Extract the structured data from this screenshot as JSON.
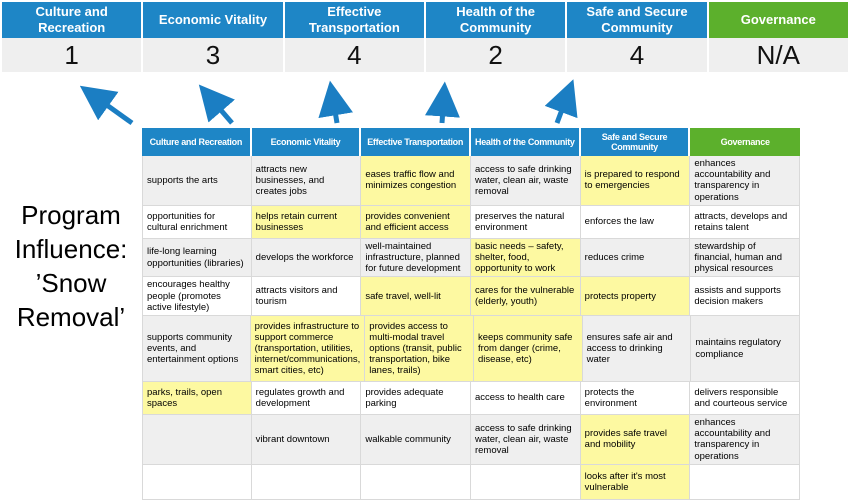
{
  "top_band": {
    "columns": [
      {
        "label": "Culture and Recreation",
        "score": "1",
        "color": "blue"
      },
      {
        "label": "Economic Vitality",
        "score": "3",
        "color": "blue"
      },
      {
        "label": "Effective Transportation",
        "score": "4",
        "color": "blue"
      },
      {
        "label": "Health of the Community",
        "score": "2",
        "color": "blue"
      },
      {
        "label": "Safe and Secure Community",
        "score": "4",
        "color": "blue"
      },
      {
        "label": "Governance",
        "score": "N/A",
        "color": "green"
      }
    ]
  },
  "program_label": {
    "text": "Program Influence: ’Snow Removal’",
    "lines": [
      "Program",
      "Influence:",
      "’Snow",
      "Removal’"
    ]
  },
  "matrix": {
    "headers": [
      {
        "label": "Culture and Recreation",
        "color": "blue"
      },
      {
        "label": "Economic Vitality",
        "color": "blue"
      },
      {
        "label": "Effective Transportation",
        "color": "blue"
      },
      {
        "label": "Health of the Community",
        "color": "blue"
      },
      {
        "label": "Safe and Secure Community",
        "color": "blue"
      },
      {
        "label": "Governance",
        "color": "green"
      }
    ],
    "rows": [
      {
        "cells": [
          {
            "text": "supports the arts",
            "highlight": false
          },
          {
            "text": "attracts new businesses, and creates jobs",
            "highlight": false
          },
          {
            "text": "eases traffic flow and minimizes congestion",
            "highlight": true
          },
          {
            "text": "access to safe drinking water, clean air, waste removal",
            "highlight": false
          },
          {
            "text": "is prepared to respond to emergencies",
            "highlight": true
          },
          {
            "text": "enhances accountability and transparency in operations",
            "highlight": false
          }
        ]
      },
      {
        "cells": [
          {
            "text": "opportunities for cultural enrichment",
            "highlight": false
          },
          {
            "text": "helps retain current businesses",
            "highlight": true
          },
          {
            "text": "provides convenient and efficient access",
            "highlight": true
          },
          {
            "text": "preserves the natural environment",
            "highlight": false
          },
          {
            "text": "enforces the law",
            "highlight": false
          },
          {
            "text": "attracts, develops and retains talent",
            "highlight": false
          }
        ]
      },
      {
        "cells": [
          {
            "text": "life-long learning opportunities (libraries)",
            "highlight": false
          },
          {
            "text": "develops the workforce",
            "highlight": false
          },
          {
            "text": "well-maintained infrastructure, planned for future development",
            "highlight": false
          },
          {
            "text": "basic needs – safety, shelter, food, opportunity to work",
            "highlight": true
          },
          {
            "text": "reduces crime",
            "highlight": false
          },
          {
            "text": "stewardship of financial, human and physical resources",
            "highlight": false
          }
        ]
      },
      {
        "cells": [
          {
            "text": "encourages healthy people (promotes active lifestyle)",
            "highlight": false
          },
          {
            "text": "attracts visitors and tourism",
            "highlight": false
          },
          {
            "text": "safe travel, well-lit",
            "highlight": true
          },
          {
            "text": "cares for the vulnerable (elderly, youth)",
            "highlight": true
          },
          {
            "text": "protects property",
            "highlight": true
          },
          {
            "text": "assists and supports decision makers",
            "highlight": false
          }
        ]
      },
      {
        "cells": [
          {
            "text": "supports community events, and entertainment options",
            "highlight": false
          },
          {
            "text": "provides infrastructure to support commerce (transportation, utilities, internet/communications, smart cities, etc)",
            "highlight": true
          },
          {
            "text": "provides access to multi-modal travel options (transit, public transportation, bike lanes, trails)",
            "highlight": true
          },
          {
            "text": "keeps community safe from danger (crime, disease, etc)",
            "highlight": true
          },
          {
            "text": "ensures safe air and access to drinking water",
            "highlight": false
          },
          {
            "text": "maintains regulatory compliance",
            "highlight": false
          }
        ]
      },
      {
        "cells": [
          {
            "text": "parks, trails, open spaces",
            "highlight": true
          },
          {
            "text": "regulates growth and development",
            "highlight": false
          },
          {
            "text": "provides adequate parking",
            "highlight": false
          },
          {
            "text": "access to health care",
            "highlight": false
          },
          {
            "text": "protects the environment",
            "highlight": false
          },
          {
            "text": "delivers responsible and courteous service",
            "highlight": false
          }
        ]
      },
      {
        "cells": [
          {
            "text": "",
            "highlight": false
          },
          {
            "text": "vibrant downtown",
            "highlight": false
          },
          {
            "text": "walkable community",
            "highlight": false
          },
          {
            "text": "access to safe drinking water, clean air, waste removal",
            "highlight": false
          },
          {
            "text": "provides safe travel and mobility",
            "highlight": true
          },
          {
            "text": "enhances accountability and transparency in operations",
            "highlight": false
          }
        ]
      },
      {
        "cells": [
          {
            "text": "",
            "highlight": false
          },
          {
            "text": "",
            "highlight": false
          },
          {
            "text": "",
            "highlight": false
          },
          {
            "text": "",
            "highlight": false
          },
          {
            "text": "looks after it's most vulnerable",
            "highlight": true
          },
          {
            "text": "",
            "highlight": false
          }
        ]
      }
    ]
  },
  "colors": {
    "blue": "#1E86C6",
    "green": "#5CB02C",
    "highlight": "#FDF9A1",
    "band_bg": "#EFEFEF",
    "row_alt": "#EFEFEF",
    "arrow": "#1B7EC3",
    "border": "#D9D9D9"
  }
}
